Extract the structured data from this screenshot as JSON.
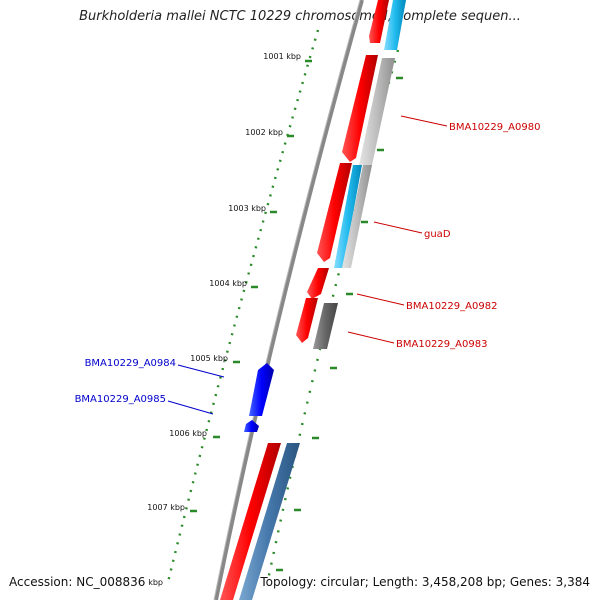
{
  "title": "Burkholderia mallei NCTC 10229 chromosome I, complete sequen...",
  "accession": "Accession: NC_008836",
  "topology": "Topology: circular; Length: 3,458,208 bp; Genes: 3,384",
  "kbp_labels": [
    "1001 kbp",
    "1002 kbp",
    "1003 kbp",
    "1004 kbp",
    "1005 kbp",
    "1006 kbp",
    "1007 kbp",
    "kbp"
  ],
  "gene_labels": [
    {
      "text": "BMA10229_A0980",
      "color": "#cc0000"
    },
    {
      "text": "guaD",
      "color": "#cc0000"
    },
    {
      "text": "BMA10229_A0982",
      "color": "#cc0000"
    },
    {
      "text": "BMA10229_A0983",
      "color": "#cc0000"
    },
    {
      "text": "BMA10229_A0984",
      "color": "#0000cc"
    },
    {
      "text": "BMA10229_A0985",
      "color": "#0000cc"
    }
  ],
  "colors": {
    "forward_cds": "#ff0000",
    "reverse_cds": "#0000ff",
    "sky_track": "#33bbee",
    "grey_track": "#bbbbbb",
    "dark_grey_track": "#666666",
    "steel_track": "#4477aa",
    "backbone": "#888888",
    "ticks": "#2a8a2a"
  }
}
